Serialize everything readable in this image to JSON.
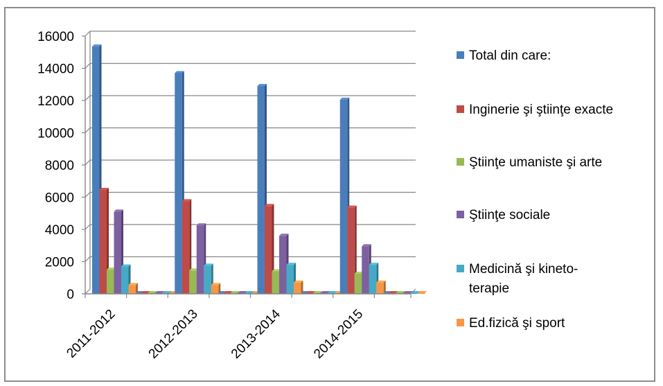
{
  "chart_data": {
    "type": "bar",
    "title": "",
    "xlabel": "",
    "ylabel": "",
    "ylim": [
      0,
      16000
    ],
    "yticks": [
      0,
      2000,
      4000,
      6000,
      8000,
      10000,
      12000,
      14000,
      16000
    ],
    "grid": true,
    "legend_position": "right",
    "categories": [
      "2011-2012",
      "2012-2013",
      "2013-2014",
      "2014-2015"
    ],
    "series": [
      {
        "name": "Total din care:",
        "color": "#4a7ebb",
        "values": [
          15350,
          13700,
          12900,
          12050
        ]
      },
      {
        "name": "Inginerie şi ştiinţe exacte",
        "color": "#be4b48",
        "values": [
          6450,
          5750,
          5450,
          5350
        ]
      },
      {
        "name": "Ştiinţe umaniste şi arte",
        "color": "#98b954",
        "values": [
          1500,
          1450,
          1400,
          1250
        ]
      },
      {
        "name": "Ştiinţe sociale",
        "color": "#7d60a0",
        "values": [
          5100,
          4250,
          3600,
          2950
        ]
      },
      {
        "name": "Medicină şi kineto-terapie",
        "legend_lines": [
          "Medicină şi kineto-",
          "terapie"
        ],
        "color": "#46aac5",
        "values": [
          1700,
          1750,
          1800,
          1800
        ]
      },
      {
        "name": "Ed.fizică şi sport",
        "color": "#f79646",
        "values": [
          550,
          550,
          700,
          700
        ]
      }
    ]
  }
}
